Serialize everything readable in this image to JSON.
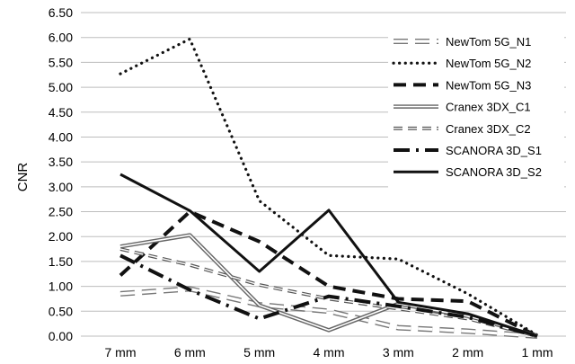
{
  "chart_data": {
    "type": "line",
    "title": "",
    "xlabel": "",
    "ylabel": "CNR",
    "categories": [
      "7 mm",
      "6 mm",
      "5 mm",
      "4 mm",
      "3 mm",
      "2 mm",
      "1 mm"
    ],
    "ylim": [
      0,
      6.5
    ],
    "ytick_step": 0.5,
    "grid": "horizontal",
    "legend_position": "top-right",
    "series": [
      {
        "name": "NewTom 5G_N1",
        "style": "double-outline",
        "values": [
          0.85,
          0.95,
          0.63,
          0.5,
          0.17,
          0.1,
          0.0
        ]
      },
      {
        "name": "NewTom 5G_N2",
        "style": "dotted",
        "values": [
          5.27,
          5.97,
          2.72,
          1.62,
          1.55,
          0.85,
          0.02
        ]
      },
      {
        "name": "NewTom 5G_N3",
        "style": "dashed-bold",
        "values": [
          1.22,
          2.5,
          1.9,
          1.0,
          0.75,
          0.7,
          0.0
        ]
      },
      {
        "name": "Cranex 3DX_C1",
        "style": "double-thin",
        "values": [
          1.8,
          2.03,
          0.62,
          0.12,
          0.65,
          0.4,
          0.0
        ]
      },
      {
        "name": "Cranex 3DX_C2",
        "style": "dashed-outline",
        "values": [
          1.75,
          1.43,
          1.03,
          0.75,
          0.55,
          0.35,
          0.0
        ]
      },
      {
        "name": "SCANORA 3D_S1",
        "style": "dash-dot-bold",
        "values": [
          1.62,
          0.93,
          0.35,
          0.8,
          0.6,
          0.38,
          0.0
        ]
      },
      {
        "name": "SCANORA 3D_S2",
        "style": "solid",
        "values": [
          3.25,
          2.52,
          1.3,
          2.53,
          0.68,
          0.45,
          0.0
        ]
      }
    ]
  }
}
